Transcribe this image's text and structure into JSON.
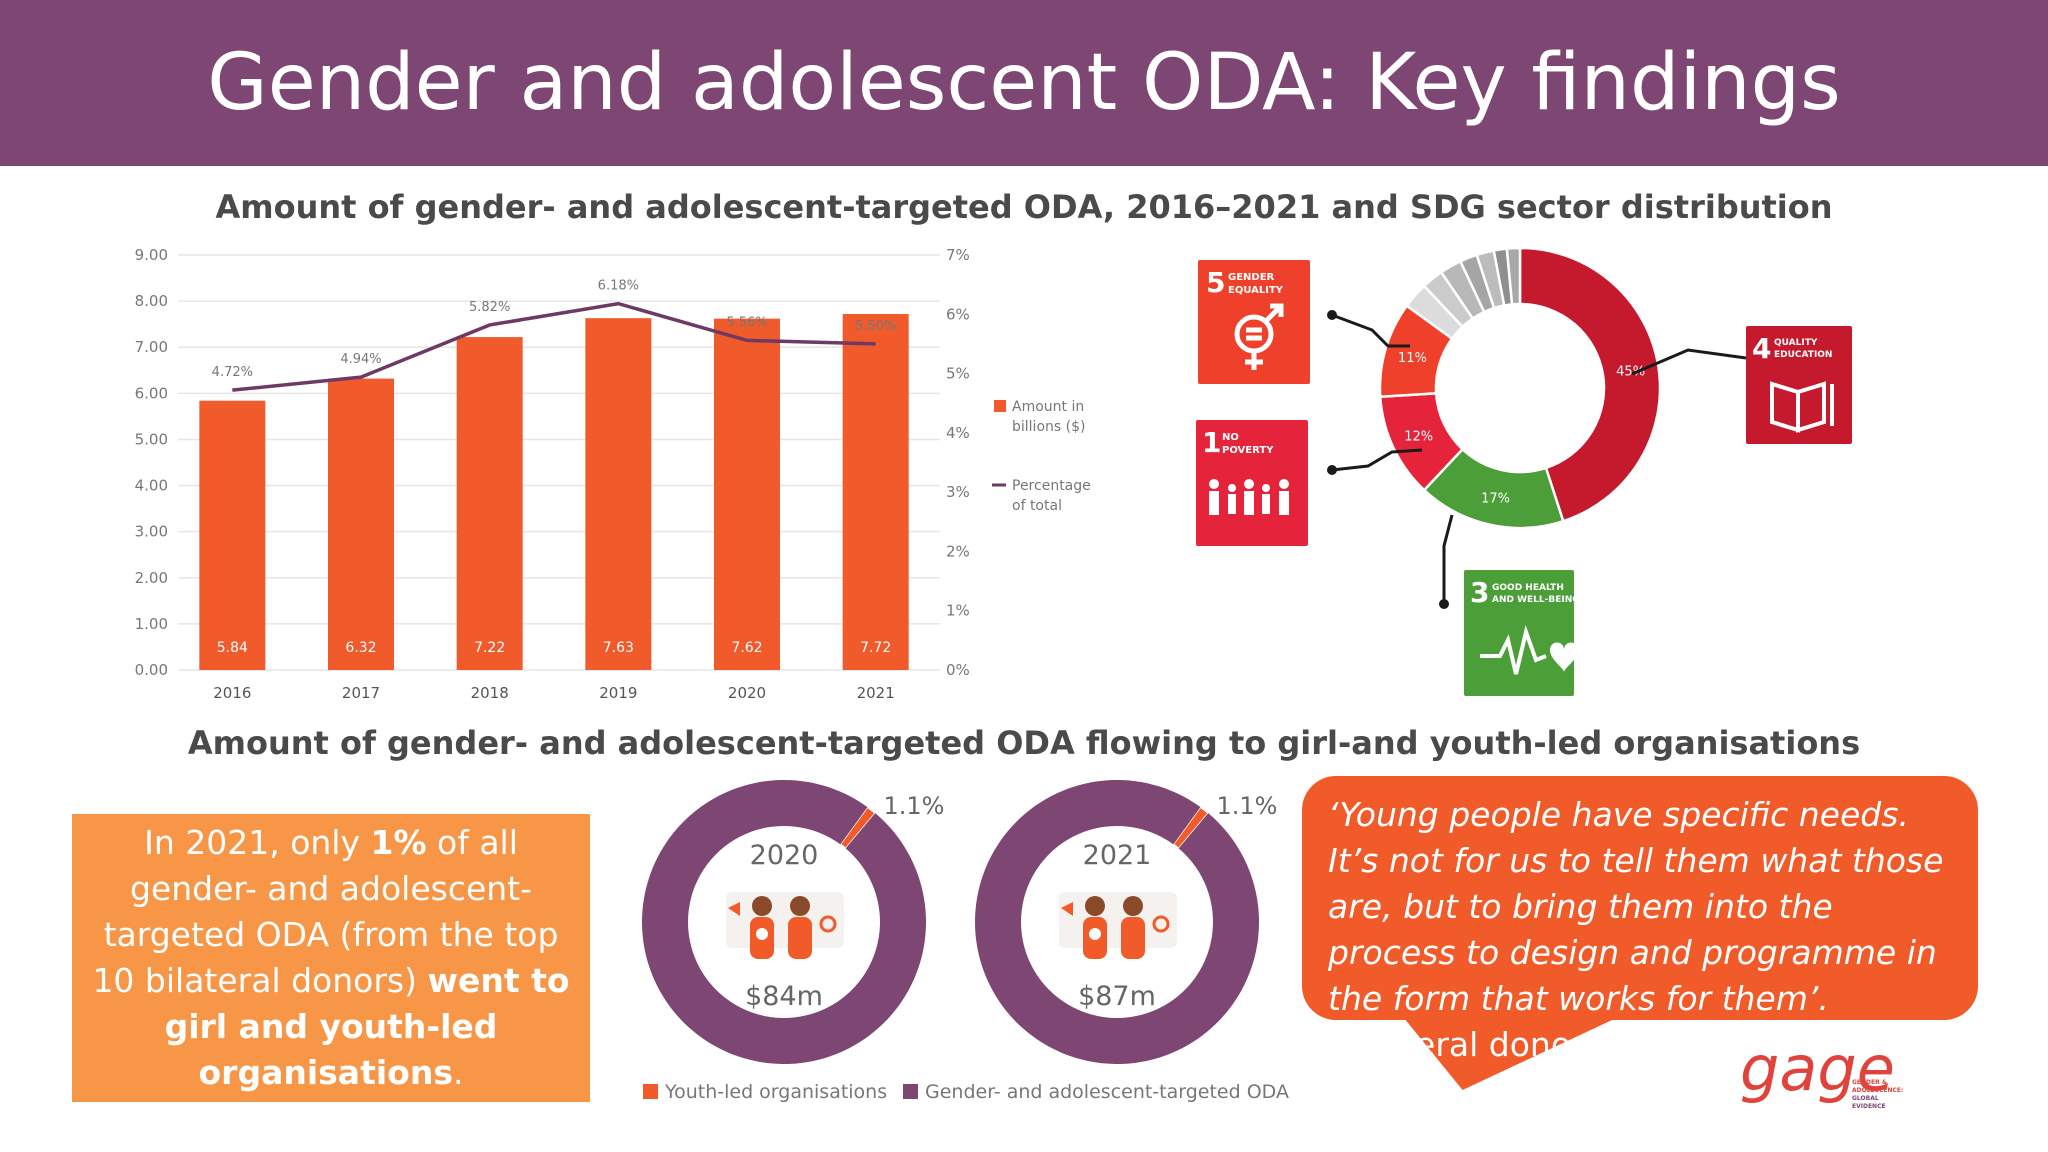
{
  "header": {
    "title": "Gender and adolescent ODA: Key findings"
  },
  "section1": {
    "title": "Amount of gender- and adolescent-targeted ODA, 2016–2021 and SDG sector distribution"
  },
  "section2": {
    "title": "Amount of gender- and adolescent-targeted ODA flowing to girl-and youth-led organisations"
  },
  "chart_data": [
    {
      "type": "bar",
      "categories": [
        "2016",
        "2017",
        "2018",
        "2019",
        "2020",
        "2021"
      ],
      "series": [
        {
          "name": "Amount in billions ($)",
          "type": "bar",
          "values": [
            5.84,
            6.32,
            7.22,
            7.63,
            7.62,
            7.72
          ],
          "labels": [
            "5.84",
            "6.32",
            "7.22",
            "7.63",
            "7.62",
            "7.72"
          ],
          "color": "#f15a2b"
        },
        {
          "name": "Percentage of total",
          "type": "line",
          "axis": "right",
          "values": [
            4.72,
            4.94,
            5.82,
            6.18,
            5.56,
            5.5
          ],
          "labels": [
            "4.72%",
            "4.94%",
            "5.82%",
            "6.18%",
            "5.56%",
            "5.50%"
          ],
          "color": "#6e3a64"
        }
      ],
      "legend": [
        "Amount in",
        "billions ($)",
        "Percentage",
        "of total"
      ],
      "ylim": [
        0,
        9
      ],
      "y_ticks": [
        "0.00",
        "1.00",
        "2.00",
        "3.00",
        "4.00",
        "5.00",
        "6.00",
        "7.00",
        "8.00",
        "9.00"
      ],
      "y2lim": [
        0,
        7
      ],
      "y2_ticks": [
        "0%",
        "1%",
        "2%",
        "3%",
        "4%",
        "5%",
        "6%",
        "7%"
      ],
      "legend_position": "right",
      "grid": true
    },
    {
      "type": "pie",
      "donut": true,
      "slices": [
        {
          "label": "45%",
          "value": 45,
          "color": "#c5192d",
          "sdg": "Quality education"
        },
        {
          "label": "17%",
          "value": 17,
          "color": "#4c9f38",
          "sdg": "Good health and well-being"
        },
        {
          "label": "12%",
          "value": 12,
          "color": "#e5243b",
          "sdg": "No poverty"
        },
        {
          "label": "11%",
          "value": 11,
          "color": "#ef402b",
          "sdg": "Gender equality"
        },
        {
          "label": "",
          "value": 3,
          "color": "#dcdcdc"
        },
        {
          "label": "",
          "value": 2.5,
          "color": "#cbcbcb"
        },
        {
          "label": "",
          "value": 2.5,
          "color": "#b8b8b8"
        },
        {
          "label": "",
          "value": 2,
          "color": "#a5a5a5"
        },
        {
          "label": "",
          "value": 2,
          "color": "#bcbcbc"
        },
        {
          "label": "",
          "value": 1.5,
          "color": "#8f8f8f"
        },
        {
          "label": "",
          "value": 1.5,
          "color": "#a8a8a8"
        }
      ]
    },
    {
      "type": "pie",
      "donut": true,
      "title": "2020",
      "center_value": "$84m",
      "slices": [
        {
          "label": "1.1%",
          "value": 1.1,
          "color": "#f15a29",
          "name": "Youth-led organisations"
        },
        {
          "label": "",
          "value": 98.9,
          "color": "#7e4673",
          "name": "Gender- and adolescent-targeted ODA"
        }
      ]
    },
    {
      "type": "pie",
      "donut": true,
      "title": "2021",
      "center_value": "$87m",
      "slices": [
        {
          "label": "1.1%",
          "value": 1.1,
          "color": "#f15a29",
          "name": "Youth-led organisations"
        },
        {
          "label": "",
          "value": 98.9,
          "color": "#7e4673",
          "name": "Gender- and adolescent-targeted ODA"
        }
      ]
    }
  ],
  "sdg_tiles": {
    "gender": {
      "number": "5",
      "line1": "GENDER",
      "line2": "EQUALITY",
      "color": "#ef402b",
      "icon": "gender-equality-icon"
    },
    "poverty": {
      "number": "1",
      "line1": "NO",
      "line2": "POVERTY",
      "color": "#e5243b",
      "icon": "family-icon"
    },
    "health": {
      "number": "3",
      "line1": "GOOD HEALTH",
      "line2": "AND WELL-BEING",
      "color": "#4c9f38",
      "icon": "heartbeat-icon"
    },
    "education": {
      "number": "4",
      "line1": "QUALITY",
      "line2": "EDUCATION",
      "color": "#c5192d",
      "icon": "book-icon"
    }
  },
  "donut_legend": [
    {
      "label": "Youth-led organisations",
      "color": "#f15a29"
    },
    {
      "label": "Gender- and adolescent-targeted ODA",
      "color": "#7e4673"
    }
  ],
  "callout": {
    "t1": "In 2021, only ",
    "t2": "1%",
    "t3": " of all gender- and adolescent-targeted ODA (from the top 10 bilateral donors) ",
    "t4": "went to girl and youth-led organisations",
    "t5": "."
  },
  "quote": {
    "text": "‘Young people have specific needs. It’s not for us to tell them what those are, but to bring them into the process to design and programme in the form that works for them’.",
    "source": " (Bilateral donor, KII)"
  },
  "logo": {
    "word": "gage",
    "tagline": [
      "GENDER &",
      "ADOLESCENCE:",
      "GLOBAL",
      "EVIDENCE"
    ]
  }
}
